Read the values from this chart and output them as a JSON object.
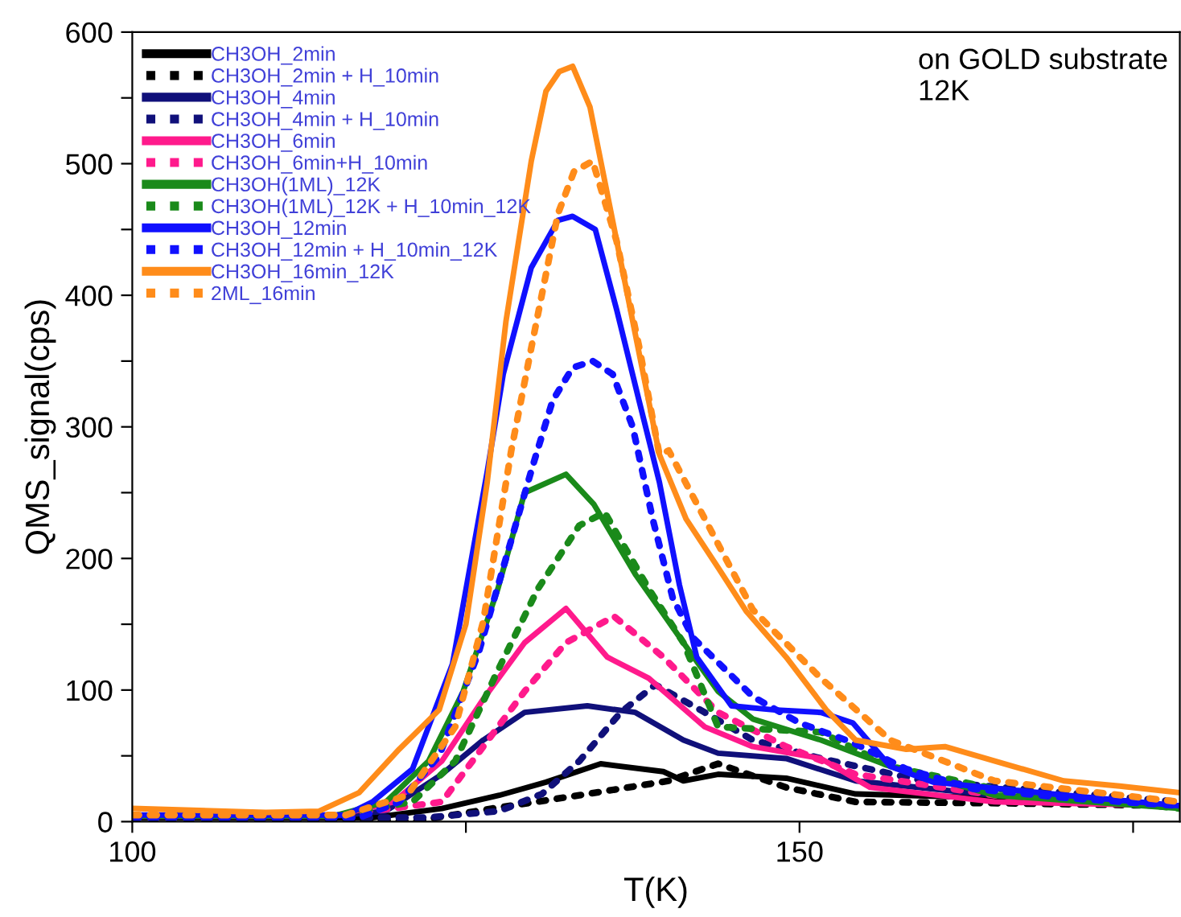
{
  "chart_data": {
    "type": "line",
    "xlabel": "T(K)",
    "ylabel": "QMS_signal(cps)",
    "annotations": [
      "on GOLD substrate\n12K"
    ],
    "xlim": [
      100,
      178.5
    ],
    "xticks": [
      100,
      {
        "value": 125,
        "label": null
      },
      150,
      {
        "value": 175,
        "label": null
      }
    ],
    "ylim": [
      0,
      600
    ],
    "yticks": [
      0,
      {
        "value": 50,
        "label": null
      },
      100,
      {
        "value": 150,
        "label": null
      },
      200,
      {
        "value": 250,
        "label": null
      },
      300,
      {
        "value": 350,
        "label": null
      },
      400,
      {
        "value": 450,
        "label": null
      },
      500,
      {
        "value": 550,
        "label": null
      },
      600
    ],
    "grid": false,
    "legend": "top left",
    "marker": "none",
    "series": [
      {
        "name": "CH3OH_2min",
        "color": "#000000",
        "line_style": "solid",
        "x": [
          100,
          115,
          118,
          123.2,
          127.5,
          131,
          135.1,
          139.8,
          141.3,
          143.9,
          149,
          154.2,
          164.6,
          178.5
        ],
        "values": [
          3,
          3,
          3,
          10,
          20,
          30,
          44,
          38,
          31,
          36,
          33,
          21,
          18,
          12
        ]
      },
      {
        "name": "CH3OH_2min + H_10min",
        "color": "#000000",
        "line_style": "dotted",
        "x": [
          100,
          115,
          121,
          127,
          133.5,
          140.2,
          143.9,
          149,
          154.2,
          165,
          178.5
        ],
        "values": [
          3,
          2,
          0,
          10,
          20,
          31,
          44,
          26,
          15,
          14,
          12
        ]
      },
      {
        "name": "CH3OH_4min",
        "color": "#10107a",
        "line_style": "solid",
        "x": [
          100,
          115,
          119,
          123.2,
          126.3,
          129.4,
          134.1,
          137.7,
          141.3,
          143.9,
          149,
          154.2,
          164.6,
          178.5
        ],
        "values": [
          4,
          4,
          8,
          36,
          62,
          83,
          88,
          83,
          62,
          52,
          48,
          31,
          20,
          12
        ]
      },
      {
        "name": "CH3OH_4min + H_10min",
        "color": "#10107a",
        "line_style": "dotted",
        "x": [
          100,
          115,
          122,
          127.5,
          130.7,
          133.5,
          136.6,
          139.2,
          142.9,
          146.5,
          151.6,
          159.3,
          178.5
        ],
        "values": [
          4,
          3,
          3,
          8,
          21,
          46,
          83,
          104,
          83,
          62,
          48,
          31,
          15
        ]
      },
      {
        "name": "CH3OH_6min",
        "color": "#ff1a8c",
        "line_style": "solid",
        "x": [
          100,
          115,
          119.6,
          123.2,
          126.3,
          129.4,
          132.5,
          135.6,
          138.7,
          142.9,
          146.5,
          151.6,
          155.3,
          164.6,
          178.5
        ],
        "values": [
          4,
          4,
          15,
          46,
          93,
          136,
          162,
          125,
          109,
          72,
          57,
          48,
          26,
          15,
          12
        ]
      },
      {
        "name": "CH3OH_6min+H_10min",
        "color": "#ff1a8c",
        "line_style": "dotted",
        "x": [
          100,
          115,
          123.2,
          126.3,
          129.4,
          132.5,
          136.1,
          139.8,
          143.9,
          149,
          154.2,
          164.6,
          178.5
        ],
        "values": [
          4,
          4,
          15,
          57,
          99,
          136,
          156,
          125,
          83,
          57,
          36,
          20,
          12
        ]
      },
      {
        "name": "CH3OH(1ML)_12K",
        "color": "#1a8a1a",
        "line_style": "solid",
        "x": [
          100,
          115,
          119,
          122.2,
          124.8,
          127.4,
          129.4,
          132.5,
          134.6,
          137.7,
          141.3,
          143.9,
          146.5,
          151.6,
          156.8,
          164.6,
          178.5
        ],
        "values": [
          4,
          4,
          15,
          46,
          99,
          177,
          250,
          264,
          241,
          188,
          136,
          99,
          78,
          62,
          42,
          20,
          10
        ]
      },
      {
        "name": "CH3OH(1ML)_12K + H_10min_12K",
        "color": "#1a8a1a",
        "line_style": "dotted",
        "x": [
          100,
          115,
          121,
          124.2,
          127.4,
          130.4,
          133.5,
          135.4,
          138.7,
          141.3,
          143.9,
          151.6,
          156.8,
          164.6,
          178.5
        ],
        "values": [
          4,
          4,
          15,
          46,
          115,
          177,
          225,
          235,
          177,
          136,
          72,
          68,
          42,
          25,
          10
        ]
      },
      {
        "name": "CH3OH_12min",
        "color": "#1010ff",
        "line_style": "solid",
        "x": [
          100,
          116,
          118,
          121,
          124,
          126.6,
          127.8,
          129.9,
          131.9,
          133,
          134.7,
          136.3,
          138,
          139.5,
          141,
          142.3,
          144.9,
          148,
          151.6,
          154,
          156.8,
          160,
          165,
          170,
          178.5
        ],
        "values": [
          5,
          5,
          15,
          40,
          120,
          266,
          340,
          421,
          457,
          460,
          450,
          389,
          319,
          258,
          180,
          125,
          88,
          85,
          83,
          75,
          42,
          30,
          25,
          20,
          12
        ]
      },
      {
        "name": "CH3OH_12min + H_10min_12K",
        "color": "#1010ff",
        "line_style": "dotted",
        "x": [
          100,
          117,
          120,
          123,
          126,
          128,
          130,
          131.5,
          133,
          134.5,
          136,
          137.5,
          139,
          140.5,
          142,
          144,
          146.5,
          150,
          154,
          158,
          163,
          170,
          178.5
        ],
        "values": [
          3,
          3,
          15,
          50,
          130,
          200,
          270,
          320,
          345,
          350,
          340,
          300,
          230,
          170,
          140,
          120,
          95,
          75,
          60,
          40,
          25,
          18,
          12
        ]
      },
      {
        "name": "CH3OH_16min_12K",
        "color": "#ff8c1a",
        "line_style": "solid",
        "x": [
          100,
          110,
          114,
          117,
          120,
          123,
          125,
          126.6,
          128,
          129.9,
          131,
          132,
          133,
          134.3,
          136.7,
          139.5,
          141.5,
          143.9,
          146,
          149,
          152,
          154.2,
          158,
          160.9,
          165,
          169.8,
          174,
          178.5
        ],
        "values": [
          10,
          7,
          8,
          22,
          55,
          85,
          150,
          258,
          380,
          502,
          555,
          570,
          574,
          543,
          421,
          279,
          230,
          193,
          160,
          125,
          85,
          62,
          55,
          57,
          45,
          31,
          27,
          22
        ]
      },
      {
        "name": "2ML_16min",
        "color": "#ff8c1a",
        "line_style": "dotted",
        "x": [
          100,
          116,
          120.6,
          124.2,
          126.3,
          128.4,
          129.9,
          131.9,
          133.1,
          134.5,
          136.3,
          138,
          139.5,
          140.2,
          146.5,
          151.6,
          156.8,
          164.6,
          178.5
        ],
        "values": [
          5,
          5,
          20,
          72,
          152,
          282,
          360,
          462,
          494,
          502,
          441,
          360,
          279,
          282,
          161,
          109,
          62,
          31,
          15
        ]
      }
    ]
  }
}
